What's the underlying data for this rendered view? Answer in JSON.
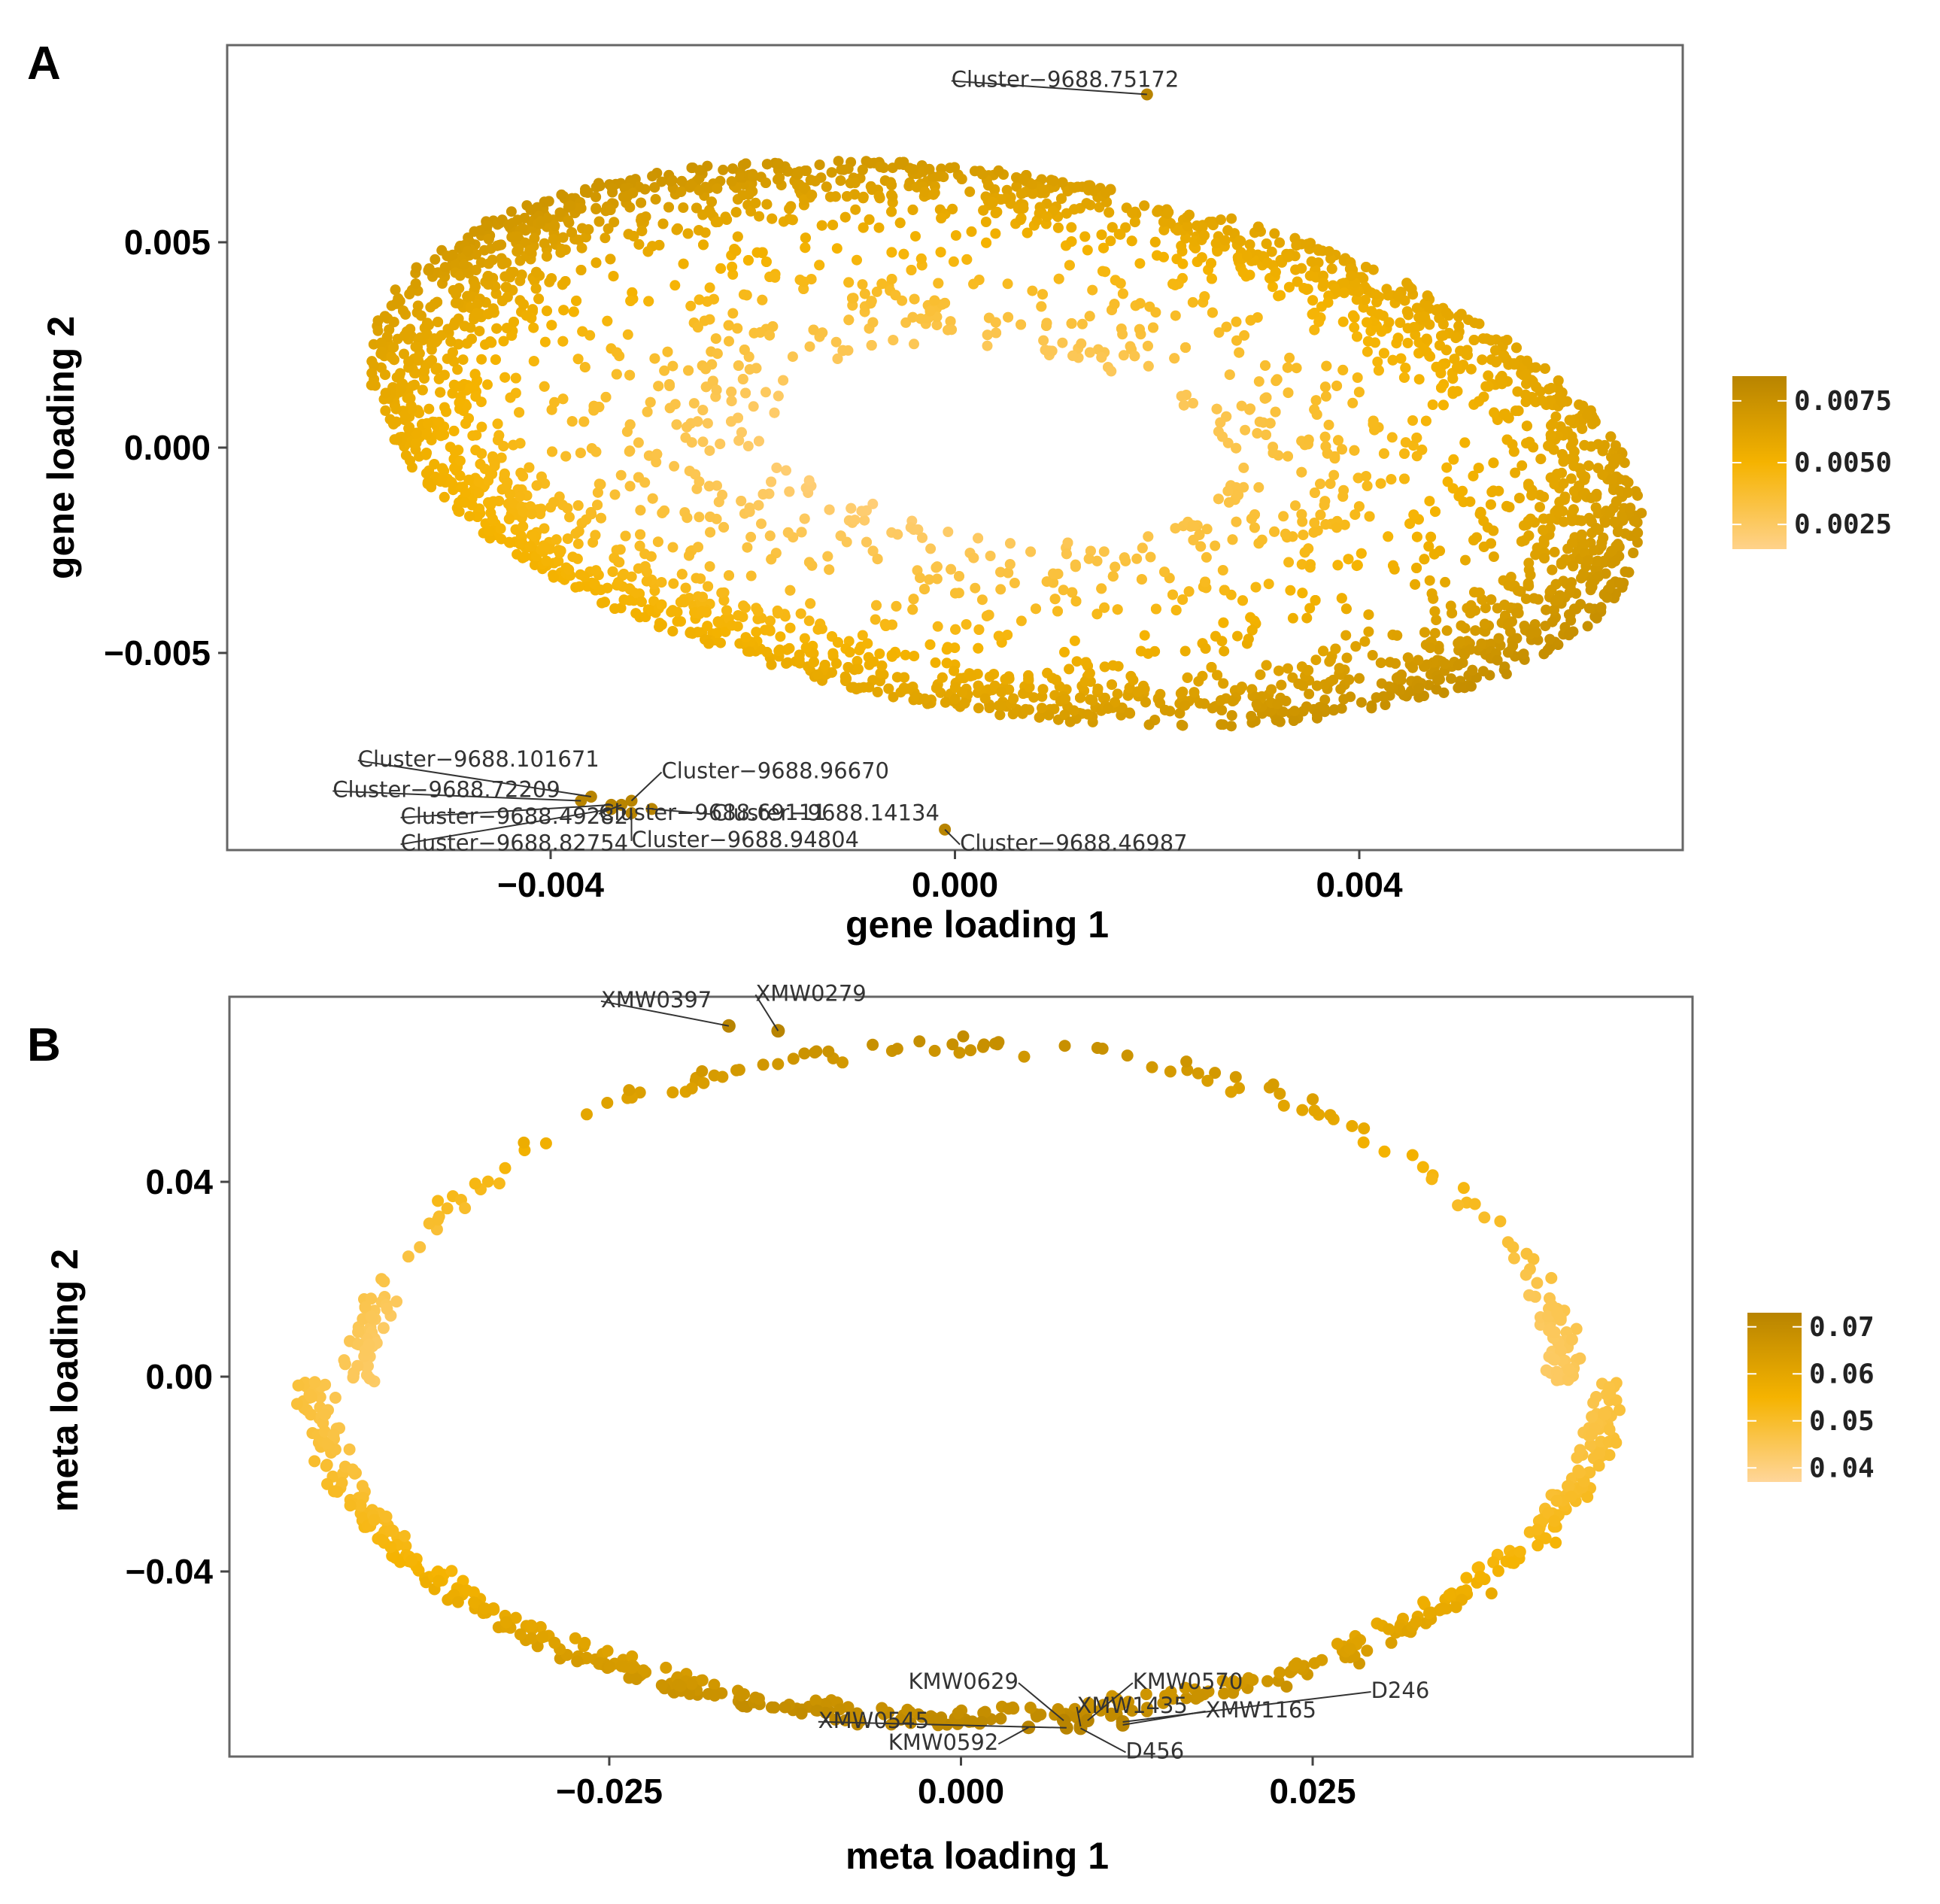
{
  "chart_data": [
    {
      "panel": "A",
      "type": "scatter",
      "xlabel": "gene loading 1",
      "ylabel": "gene loading 2",
      "xlim": [
        -0.0072,
        0.0072
      ],
      "ylim": [
        -0.0098,
        0.0098
      ],
      "x_ticks": [
        -0.004,
        0.0,
        0.004
      ],
      "x_tick_labels": [
        "−0.004",
        "0.000",
        "0.004"
      ],
      "y_ticks": [
        -0.005,
        0.0,
        0.005
      ],
      "y_tick_labels": [
        "−0.005",
        "0.000",
        "0.005"
      ],
      "shape": "filled ellipse, center (0.0005, 0.0001), semi-axes 0.0065 x 0.0092, tilted; sparse interior",
      "legend": {
        "placement": "right",
        "ticks": [
          0.0025,
          0.005,
          0.0075
        ],
        "tick_labels": [
          "0.0025",
          "0.0050",
          "0.0075"
        ],
        "range": [
          0.0015,
          0.0085
        ],
        "low_color": "#ffcf7a",
        "mid_color": "#f5b300",
        "high_color": "#b88400"
      },
      "labeled_points": [
        {
          "label": "Cluster−9688.75172",
          "x": 0.0019,
          "y": 0.0086
        },
        {
          "label": "Cluster−9688.101671",
          "x": -0.0036,
          "y": -0.0085
        },
        {
          "label": "Cluster−9688.72209",
          "x": -0.0037,
          "y": -0.0086
        },
        {
          "label": "Cluster−9688.49282",
          "x": -0.0034,
          "y": -0.0087
        },
        {
          "label": "Cluster−9688.82754",
          "x": -0.0034,
          "y": -0.0088
        },
        {
          "label": "Cluster−9688.96670",
          "x": -0.0032,
          "y": -0.0086
        },
        {
          "label": "Cluster−9688.69111",
          "x": -0.0033,
          "y": -0.0087
        },
        {
          "label": "Cluster−9688.14134",
          "x": -0.003,
          "y": -0.0088
        },
        {
          "label": "Cluster−9688.94804",
          "x": -0.0032,
          "y": -0.0089
        },
        {
          "label": "Cluster−9688.46987",
          "x": -0.0001,
          "y": -0.0093
        }
      ]
    },
    {
      "panel": "B",
      "type": "scatter",
      "xlabel": "meta loading 1",
      "ylabel": "meta loading 2",
      "xlim": [
        -0.052,
        0.052
      ],
      "ylim": [
        -0.078,
        0.078
      ],
      "x_ticks": [
        -0.025,
        0.0,
        0.025
      ],
      "x_tick_labels": [
        "−0.025",
        "0.000",
        "0.025"
      ],
      "y_ticks": [
        -0.04,
        0.0,
        0.04
      ],
      "y_tick_labels": [
        "−0.04",
        "0.00",
        "0.04"
      ],
      "shape": "ring of points along ellipse, center (0.0, -0.001), semi-axes 0.046 x 0.069",
      "legend": {
        "placement": "right",
        "ticks": [
          0.04,
          0.05,
          0.06,
          0.07
        ],
        "tick_labels": [
          "0.04",
          "0.05",
          "0.06",
          "0.07"
        ],
        "range": [
          0.037,
          0.073
        ],
        "low_color": "#ffd38a",
        "mid_color": "#f5b300",
        "high_color": "#b88400"
      },
      "labeled_points": [
        {
          "label": "XMW0279",
          "x": -0.013,
          "y": 0.071
        },
        {
          "label": "XMW0397",
          "x": -0.0165,
          "y": 0.072
        },
        {
          "label": "KMW0629",
          "x": 0.0073,
          "y": -0.0706
        },
        {
          "label": "KMW0570",
          "x": 0.009,
          "y": -0.0706
        },
        {
          "label": "XMW1435",
          "x": 0.0085,
          "y": -0.0718
        },
        {
          "label": "XMW1165",
          "x": 0.0115,
          "y": -0.0715
        },
        {
          "label": "D246",
          "x": 0.0115,
          "y": -0.0709
        },
        {
          "label": "XMW0545",
          "x": 0.0075,
          "y": -0.0721
        },
        {
          "label": "KMW0592",
          "x": 0.0048,
          "y": -0.072
        },
        {
          "label": "D456",
          "x": 0.0085,
          "y": -0.0722
        }
      ]
    }
  ],
  "panel_labels": {
    "a": "A",
    "b": "B"
  }
}
